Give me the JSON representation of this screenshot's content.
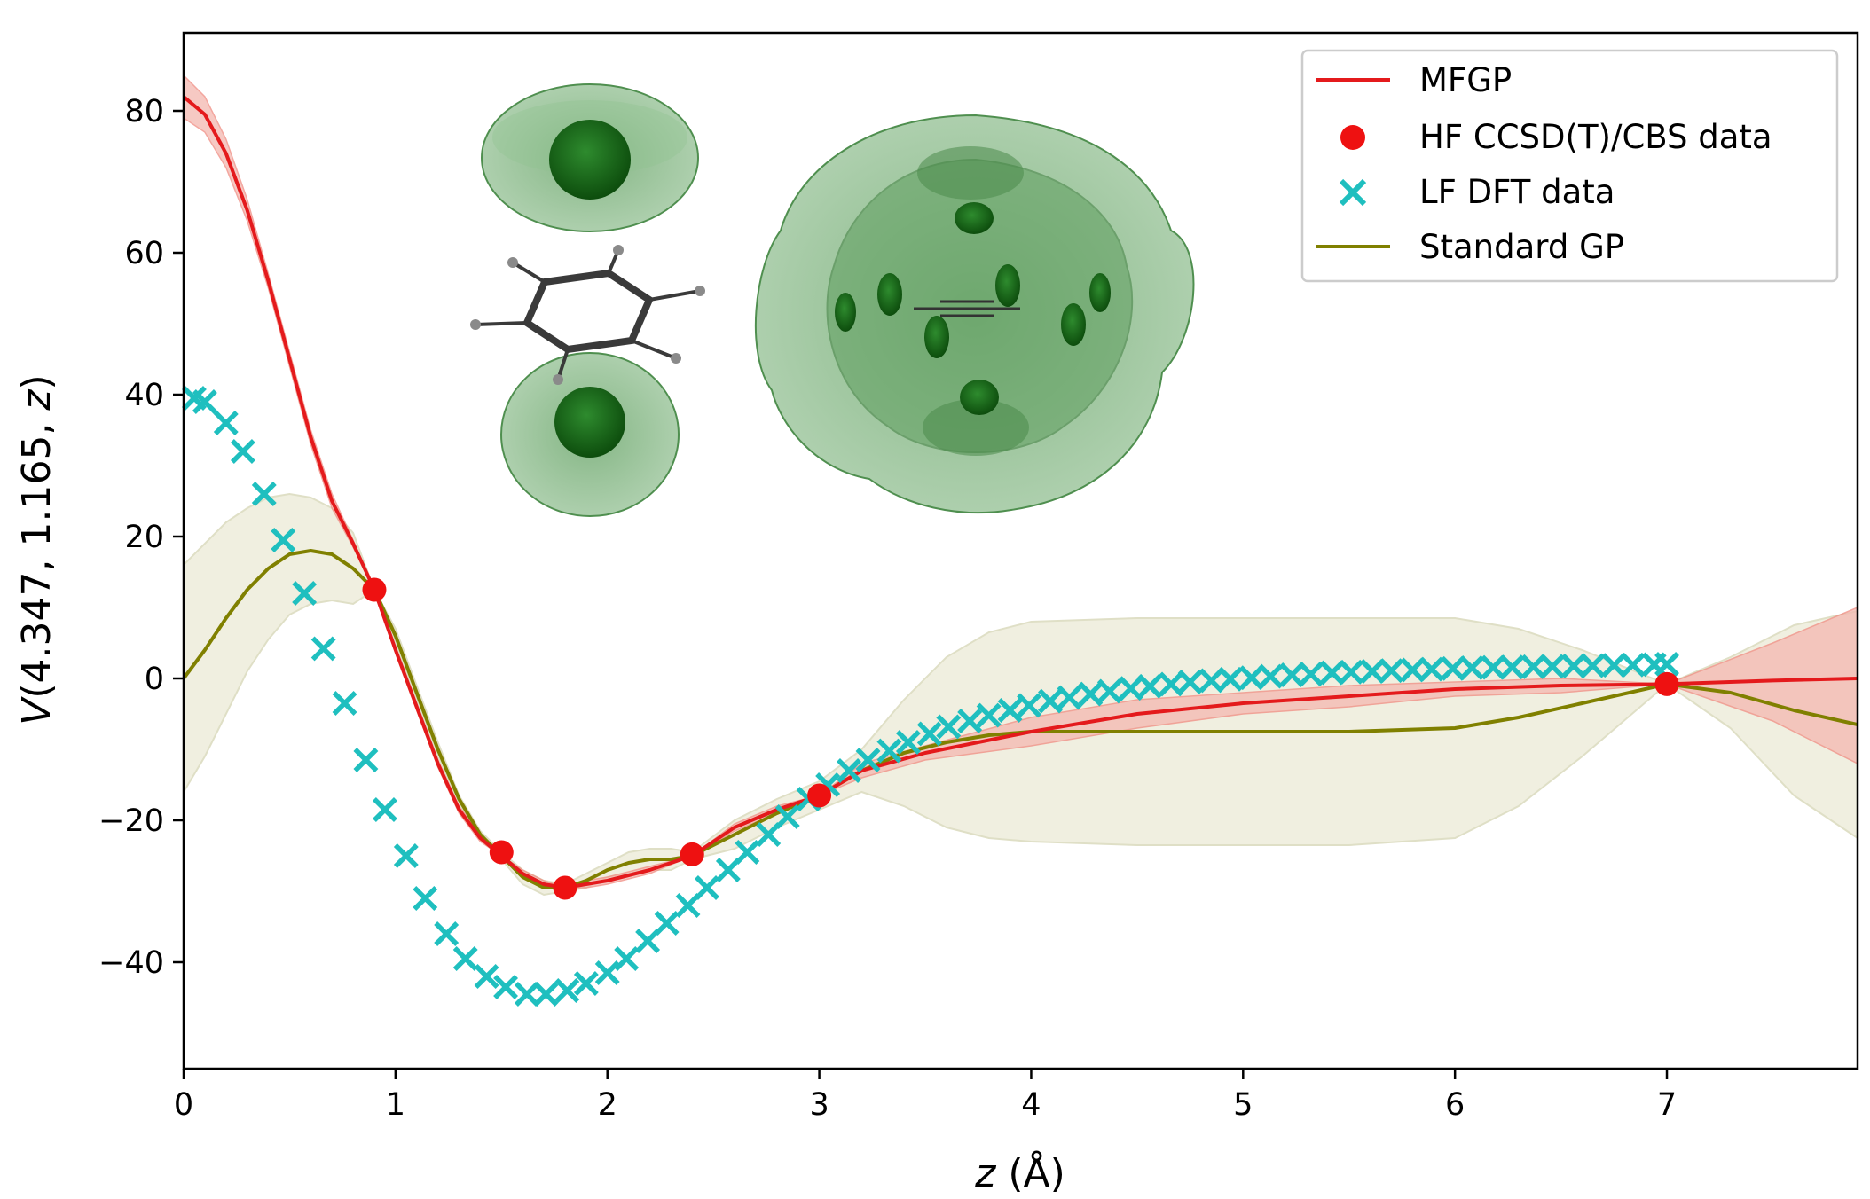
{
  "chart_data": {
    "type": "line",
    "xlabel_var": "z",
    "xlabel_unit": " (Å)",
    "ylabel_prefix": "V",
    "ylabel_args": "(4.347, 1.165, ",
    "ylabel_var": "z",
    "ylabel_suffix": ")",
    "xlim": [
      0,
      7.9
    ],
    "ylim": [
      -55,
      91
    ],
    "xticks": [
      "0",
      "1",
      "2",
      "3",
      "4",
      "5",
      "6",
      "7"
    ],
    "yticks": [
      "80",
      "60",
      "40",
      "20",
      "0",
      "−20",
      "−40"
    ],
    "ytick_values": [
      80,
      60,
      40,
      20,
      0,
      -20,
      -40
    ],
    "grid": false,
    "legend_position": "top-right",
    "legend": [
      "MFGP",
      "HF CCSD(T)/CBS data",
      "LF DFT data",
      "Standard GP"
    ],
    "colors": {
      "mfgp": "#e41a1c",
      "mfgp_band": "#f4b8b0",
      "hf": "#ee1111",
      "lf": "#1fbfbf",
      "standard_gp": "#808000",
      "gp_band": "#efeedd"
    },
    "series": [
      {
        "name": "MFGP",
        "x": [
          0,
          0.1,
          0.2,
          0.3,
          0.4,
          0.5,
          0.6,
          0.7,
          0.8,
          0.9,
          1.0,
          1.1,
          1.2,
          1.3,
          1.4,
          1.5,
          1.6,
          1.7,
          1.8,
          1.9,
          2.0,
          2.2,
          2.4,
          2.6,
          2.8,
          3.0,
          3.2,
          3.5,
          4.0,
          4.5,
          5.0,
          5.5,
          6.0,
          6.5,
          7.0,
          7.5,
          7.9
        ],
        "y": [
          82,
          79.5,
          74,
          66,
          56,
          45,
          34,
          25,
          19,
          12.5,
          4,
          -4,
          -12,
          -18.5,
          -22.5,
          -25,
          -27.5,
          -29,
          -29.5,
          -29,
          -28.5,
          -27,
          -25,
          -21,
          -18.5,
          -16.5,
          -13,
          -10.5,
          -7.5,
          -5,
          -3.5,
          -2.5,
          -1.5,
          -1,
          -0.8,
          -0.3,
          0
        ],
        "band_upper": [
          85,
          82,
          76,
          67.5,
          57,
          46,
          35,
          26,
          19.5,
          12.5,
          4.5,
          -3.5,
          -11.5,
          -18,
          -22,
          -25,
          -27,
          -28.5,
          -29.5,
          -28.5,
          -28,
          -26.5,
          -25,
          -20.5,
          -18,
          -16.5,
          -12,
          -9.5,
          -5.5,
          -3,
          -2,
          -1,
          -0.5,
          0,
          -0.8,
          5,
          10
        ],
        "band_lower": [
          79,
          77,
          72,
          64.5,
          55,
          44,
          33,
          24,
          18.5,
          12.5,
          3.5,
          -4.5,
          -12.5,
          -19,
          -23,
          -25,
          -28,
          -29.5,
          -29.5,
          -29.5,
          -29,
          -27.5,
          -25,
          -21.5,
          -19,
          -16.5,
          -14,
          -11.5,
          -9.5,
          -7,
          -5,
          -4,
          -2.5,
          -2,
          -0.8,
          -6,
          -12
        ]
      },
      {
        "name": "HF CCSD(T)/CBS data",
        "x": [
          0.9,
          1.5,
          1.8,
          2.4,
          3.0,
          7.0
        ],
        "y": [
          12.5,
          -24.5,
          -29.5,
          -24.8,
          -16.5,
          -0.8
        ]
      },
      {
        "name": "LF DFT data",
        "x": [
          0.05,
          0.1,
          0.2,
          0.28,
          0.38,
          0.47,
          0.57,
          0.66,
          0.76,
          0.86,
          0.95,
          1.05,
          1.14,
          1.24,
          1.33,
          1.43,
          1.52,
          1.62,
          1.71,
          1.81,
          1.9,
          2.0,
          2.09,
          2.19,
          2.28,
          2.38,
          2.47,
          2.57,
          2.66,
          2.76,
          2.85,
          2.95,
          3.04,
          3.14,
          3.23,
          3.33,
          3.42,
          3.52,
          3.61,
          3.71,
          3.8,
          3.9,
          3.99,
          4.09,
          4.18,
          4.28,
          4.37,
          4.47,
          4.56,
          4.66,
          4.75,
          4.85,
          4.94,
          5.04,
          5.13,
          5.23,
          5.32,
          5.42,
          5.51,
          5.61,
          5.7,
          5.8,
          5.89,
          5.99,
          6.08,
          6.18,
          6.27,
          6.37,
          6.46,
          6.56,
          6.65,
          6.75,
          6.84,
          6.94,
          7.0
        ],
        "y": [
          39.5,
          39,
          36,
          32,
          26,
          19.5,
          12,
          4.2,
          -3.5,
          -11.5,
          -18.5,
          -25,
          -31,
          -36,
          -39.5,
          -42,
          -43.5,
          -44.5,
          -44.5,
          -44,
          -43,
          -41.5,
          -39.5,
          -37,
          -34.5,
          -32,
          -29.5,
          -27,
          -24.5,
          -22,
          -19.5,
          -17,
          -15,
          -13,
          -11.5,
          -10.2,
          -9,
          -7.8,
          -6.8,
          -6,
          -5.2,
          -4.5,
          -3.8,
          -3.2,
          -2.7,
          -2.2,
          -1.8,
          -1.4,
          -1.1,
          -0.8,
          -0.5,
          -0.3,
          -0.1,
          0.1,
          0.3,
          0.5,
          0.6,
          0.8,
          0.9,
          1.0,
          1.1,
          1.2,
          1.3,
          1.4,
          1.5,
          1.55,
          1.6,
          1.65,
          1.7,
          1.75,
          1.8,
          1.85,
          1.9,
          1.95,
          2.0
        ]
      },
      {
        "name": "Standard GP",
        "x": [
          0,
          0.1,
          0.2,
          0.3,
          0.4,
          0.5,
          0.6,
          0.7,
          0.8,
          0.9,
          1.0,
          1.1,
          1.2,
          1.3,
          1.4,
          1.5,
          1.6,
          1.7,
          1.8,
          1.9,
          2.0,
          2.1,
          2.2,
          2.3,
          2.4,
          2.6,
          2.8,
          3.0,
          3.2,
          3.4,
          3.6,
          3.8,
          4.0,
          4.5,
          5.0,
          5.5,
          6.0,
          6.3,
          6.6,
          7.0,
          7.3,
          7.6,
          7.9
        ],
        "y": [
          0,
          4,
          8.5,
          12.5,
          15.5,
          17.5,
          18,
          17.5,
          15.5,
          12.5,
          6,
          -2,
          -10,
          -17,
          -22,
          -25,
          -28,
          -29.5,
          -29.5,
          -28.5,
          -27,
          -26,
          -25.5,
          -25.5,
          -25,
          -22,
          -19,
          -16.5,
          -13,
          -10.5,
          -9,
          -8,
          -7.5,
          -7.5,
          -7.5,
          -7.5,
          -7,
          -5.5,
          -3.5,
          -0.8,
          -2,
          -4.5,
          -6.5
        ],
        "band_upper": [
          16,
          19,
          22,
          24,
          25.5,
          26,
          25.5,
          24,
          20.5,
          12.5,
          7,
          -1,
          -9,
          -16.5,
          -21.5,
          -24.5,
          -27,
          -28.5,
          -29,
          -27.5,
          -26,
          -24.5,
          -24,
          -24,
          -24.5,
          -20,
          -17,
          -14.5,
          -10,
          -3,
          3,
          6.5,
          8,
          8.5,
          8.5,
          8.5,
          8.5,
          7,
          4,
          -0.8,
          3,
          7.5,
          9.5
        ],
        "band_lower": [
          -16,
          -11,
          -5,
          1,
          5.5,
          9,
          10.5,
          11,
          10.5,
          12.5,
          5,
          -3,
          -11,
          -17.5,
          -22.5,
          -25.5,
          -29,
          -30.5,
          -30,
          -29.5,
          -28,
          -27.5,
          -27,
          -27,
          -25.5,
          -24,
          -21,
          -18.5,
          -16,
          -18,
          -21,
          -22.5,
          -23,
          -23.5,
          -23.5,
          -23.5,
          -22.5,
          -18,
          -11,
          -0.8,
          -7,
          -16.5,
          -22.5
        ]
      }
    ]
  }
}
